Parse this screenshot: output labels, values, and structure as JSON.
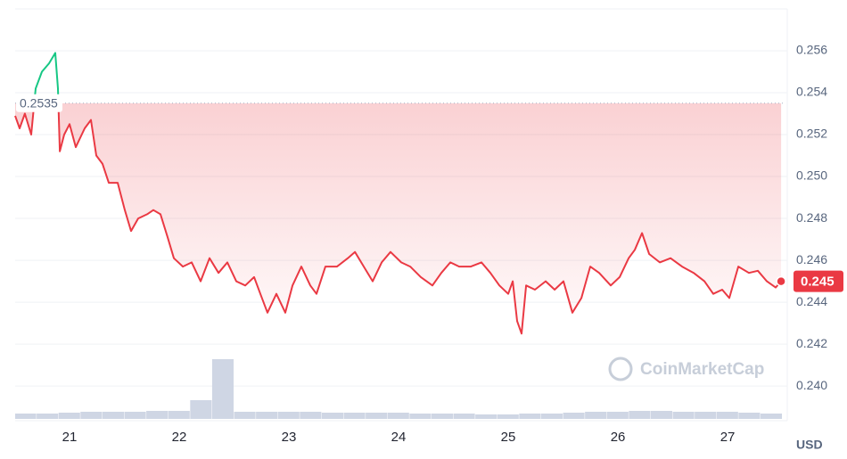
{
  "chart_data": {
    "type": "line",
    "x": [
      20.504,
      20.545,
      20.593,
      20.65,
      20.691,
      20.748,
      20.813,
      20.87,
      20.894,
      20.911,
      20.951,
      21.0,
      21.057,
      21.138,
      21.195,
      21.244,
      21.301,
      21.358,
      21.439,
      21.504,
      21.561,
      21.626,
      21.707,
      21.764,
      21.829,
      21.894,
      21.951,
      22.033,
      22.114,
      22.195,
      22.276,
      22.358,
      22.439,
      22.52,
      22.602,
      22.683,
      22.74,
      22.805,
      22.886,
      22.967,
      23.033,
      23.114,
      23.195,
      23.252,
      23.333,
      23.439,
      23.537,
      23.602,
      23.683,
      23.764,
      23.846,
      23.927,
      24.024,
      24.106,
      24.203,
      24.309,
      24.39,
      24.472,
      24.553,
      24.659,
      24.756,
      24.837,
      24.919,
      25.0,
      25.041,
      25.081,
      25.122,
      25.163,
      25.244,
      25.341,
      25.423,
      25.504,
      25.585,
      25.667,
      25.748,
      25.829,
      25.935,
      26.016,
      26.098,
      26.154,
      26.22,
      26.285,
      26.382,
      26.48,
      26.585,
      26.691,
      26.789,
      26.87,
      26.951,
      27.016,
      27.098,
      27.195,
      27.276,
      27.358,
      27.439,
      27.488
    ],
    "values": [
      0.2529,
      0.2523,
      0.253,
      0.252,
      0.2542,
      0.255,
      0.2554,
      0.2559,
      0.2542,
      0.2512,
      0.252,
      0.2525,
      0.2514,
      0.2523,
      0.2527,
      0.251,
      0.2506,
      0.2497,
      0.2497,
      0.2484,
      0.2474,
      0.248,
      0.2482,
      0.2484,
      0.2482,
      0.2471,
      0.2461,
      0.2457,
      0.2459,
      0.245,
      0.2461,
      0.2454,
      0.2459,
      0.245,
      0.2448,
      0.2452,
      0.2444,
      0.2435,
      0.2444,
      0.2435,
      0.2448,
      0.2457,
      0.2448,
      0.2444,
      0.2457,
      0.2457,
      0.2461,
      0.2464,
      0.2457,
      0.245,
      0.2459,
      0.2464,
      0.2459,
      0.2457,
      0.2452,
      0.2448,
      0.2454,
      0.2459,
      0.2457,
      0.2457,
      0.2459,
      0.2454,
      0.2448,
      0.2444,
      0.245,
      0.2431,
      0.2425,
      0.2448,
      0.2446,
      0.245,
      0.2446,
      0.245,
      0.2435,
      0.2442,
      0.2457,
      0.2454,
      0.2448,
      0.2452,
      0.2461,
      0.2465,
      0.2473,
      0.2463,
      0.2459,
      0.2461,
      0.2457,
      0.2454,
      0.245,
      0.2444,
      0.2446,
      0.2442,
      0.2457,
      0.2454,
      0.2455,
      0.245,
      0.2447,
      0.245
    ],
    "color_up": "#16c784",
    "color_down": "#ea3943",
    "baseline": 0.2535,
    "last_price": 0.245,
    "currency": "USD",
    "watermark": "CoinMarketCap",
    "xlim": [
      20.504,
      27.52
    ],
    "xticks": [
      21,
      22,
      23,
      24,
      25,
      26,
      27
    ],
    "ylim": [
      0.23843,
      0.258
    ],
    "yticks": [
      {
        "value": 0.24,
        "label": "0.240"
      },
      0.242,
      0.244,
      0.246,
      0.248,
      {
        "value": 0.25,
        "label": "0.250"
      },
      0.252,
      0.254,
      0.256
    ],
    "grid": true,
    "volume": {
      "color": "#cfd6e4",
      "x": [
        20.5,
        20.7,
        20.9,
        21.1,
        21.3,
        21.5,
        21.7,
        21.9,
        22.1,
        22.3,
        22.5,
        22.7,
        22.9,
        23.1,
        23.3,
        23.5,
        23.7,
        23.9,
        24.1,
        24.3,
        24.5,
        24.7,
        24.9,
        25.1,
        25.3,
        25.5,
        25.7,
        25.9,
        26.1,
        26.3,
        26.5,
        26.7,
        26.9,
        27.1,
        27.3
      ],
      "values": [
        6,
        6,
        7,
        8,
        8,
        8,
        9,
        9,
        21,
        67,
        8,
        8,
        8,
        8,
        7,
        7,
        7,
        7,
        6,
        6,
        6,
        5,
        5,
        6,
        6,
        7,
        8,
        8,
        9,
        9,
        8,
        8,
        8,
        7,
        6
      ]
    }
  }
}
